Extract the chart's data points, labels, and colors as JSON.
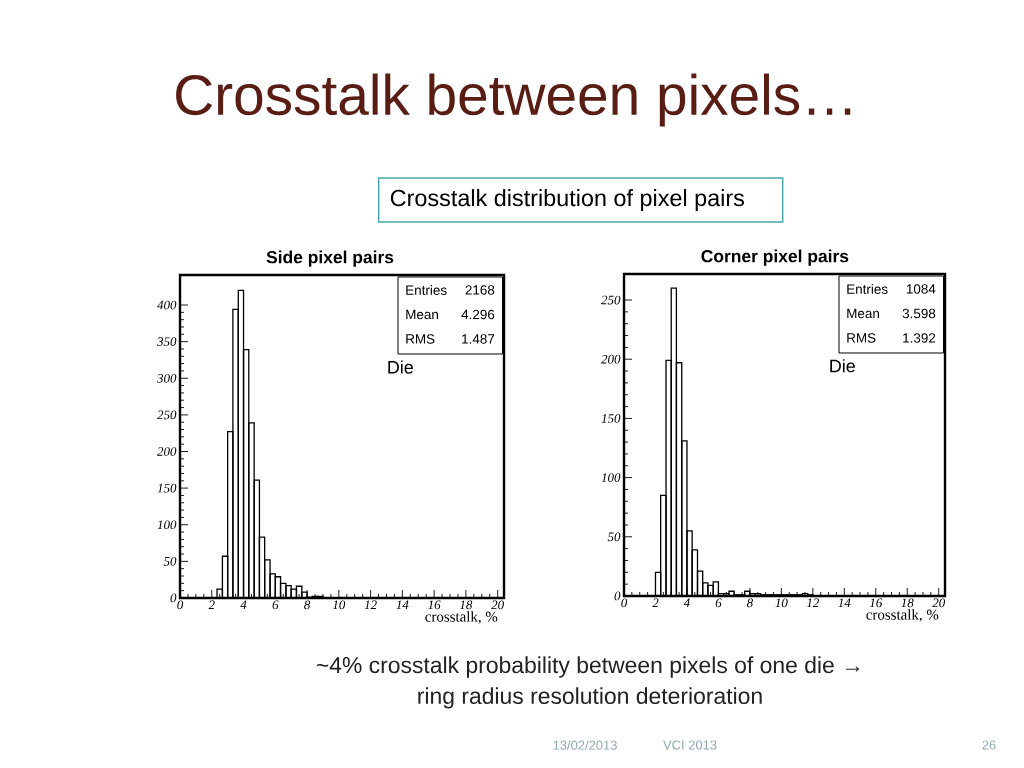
{
  "chart_data": [
    {
      "type": "other",
      "title": "Crosstalk between pixels…",
      "subtitle": "Crosstalk distribution of pixel pairs"
    },
    {
      "type": "histogram",
      "title": "Side pixel pairs",
      "xlabel": "crosstalk, %",
      "bins": [
        2.33,
        2.67,
        3,
        3.33,
        3.67,
        4,
        4.33,
        4.67,
        5,
        5.33,
        5.67,
        6,
        6.33,
        6.67,
        7,
        7.33,
        7.67,
        8,
        8.33,
        8.67,
        9
      ],
      "values": [
        12,
        57,
        227,
        394,
        420,
        339,
        239,
        161,
        83,
        52,
        33,
        29,
        20,
        17,
        12,
        16,
        8,
        1,
        2,
        2
      ],
      "color": "#000000",
      "xlim": [
        0,
        20.4
      ],
      "ylim": [
        0,
        441
      ],
      "xticks": [
        0,
        2,
        4,
        6,
        8,
        10,
        12,
        14,
        16,
        18,
        20
      ],
      "yticks": [
        0,
        50,
        100,
        150,
        200,
        250,
        300,
        350,
        400
      ],
      "annotations": [
        "Entries",
        "2168",
        "Mean",
        "4.296",
        "RMS",
        "1.487",
        "Die"
      ]
    },
    {
      "type": "histogram",
      "title": "Corner pixel pairs",
      "xlabel": "crosstalk, %",
      "bins": [
        2,
        2.33,
        2.67,
        3,
        3.33,
        3.67,
        4,
        4.33,
        4.67,
        5,
        5.33,
        5.67,
        6,
        6.33,
        6.67,
        7,
        7.33,
        7.67,
        8,
        8.33,
        8.67,
        9,
        9.33,
        9.67,
        10,
        10.33,
        10.67,
        11,
        11.33,
        11.67,
        12
      ],
      "values": [
        20,
        85,
        199,
        260,
        197,
        131,
        55,
        39,
        21,
        11,
        9,
        12,
        2,
        2,
        4,
        1,
        1,
        4,
        2,
        2,
        1,
        1,
        1,
        1,
        1,
        1,
        1,
        1,
        2,
        1
      ],
      "color": "#000000",
      "xlim": [
        0,
        20.4
      ],
      "ylim": [
        0,
        272
      ],
      "xticks": [
        0,
        2,
        4,
        6,
        8,
        10,
        12,
        14,
        16,
        18,
        20
      ],
      "yticks": [
        0,
        50,
        100,
        150,
        200,
        250
      ],
      "annotations": [
        "Entries",
        "1084",
        "Mean",
        "3.598",
        "RMS",
        "1.392",
        "Die"
      ]
    },
    {
      "type": "other",
      "annotations": [
        "~4% crosstalk probability between pixels of one die → ring radius resolution deterioration",
        "13/02/2013",
        "VCI 2013",
        "26"
      ]
    }
  ]
}
